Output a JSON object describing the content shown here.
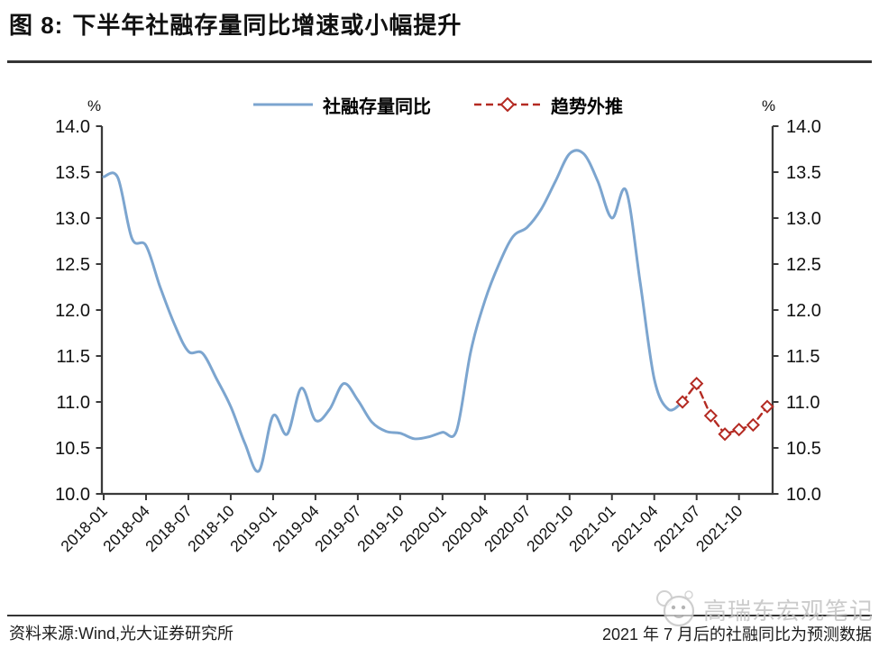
{
  "header": {
    "figure_label": "图 8:",
    "title": "下半年社融存量同比增速或小幅提升"
  },
  "legend": {
    "series1": "社融存量同比",
    "series2": "趋势外推"
  },
  "y_axis": {
    "unit_left": "%",
    "unit_right": "%"
  },
  "footer": {
    "source": "资料来源:Wind,光大证券研究所",
    "note": "2021 年 7 月后的社融同比为预测数据"
  },
  "watermark": {
    "text": "高瑞东宏观笔记",
    "icon": "panda-face-icon"
  },
  "colors": {
    "actual": "#7CA5CF",
    "forecast": "#B42A22",
    "axis": "#3a3a3a"
  },
  "chart_data": {
    "type": "line",
    "title": "下半年社融存量同比增速或小幅提升",
    "xlabel": "",
    "ylabel": "%",
    "ylim": [
      10.0,
      14.0
    ],
    "ytick_step": 0.5,
    "ytick_labels": [
      "14.0",
      "13.5",
      "13.0",
      "12.5",
      "12.0",
      "11.5",
      "11.0",
      "10.5",
      "10.0"
    ],
    "x_tick_labels": [
      "2018-01",
      "2018-04",
      "2018-07",
      "2018-10",
      "2019-01",
      "2019-04",
      "2019-07",
      "2019-10",
      "2020-01",
      "2020-04",
      "2020-07",
      "2020-10",
      "2021-01",
      "2021-04",
      "2021-07",
      "2021-10"
    ],
    "x_range_months": [
      "2018-01",
      "2021-12"
    ],
    "grid": false,
    "legend_position": "top",
    "series": [
      {
        "name": "社融存量同比",
        "style": "solid",
        "smooth": true,
        "marker": "none",
        "color": "#7CA5CF",
        "months": [
          "2018-01",
          "2018-02",
          "2018-03",
          "2018-04",
          "2018-05",
          "2018-06",
          "2018-07",
          "2018-08",
          "2018-09",
          "2018-10",
          "2018-11",
          "2018-12",
          "2019-01",
          "2019-02",
          "2019-03",
          "2019-04",
          "2019-05",
          "2019-06",
          "2019-07",
          "2019-08",
          "2019-09",
          "2019-10",
          "2019-11",
          "2019-12",
          "2020-01",
          "2020-02",
          "2020-03",
          "2020-04",
          "2020-05",
          "2020-06",
          "2020-07",
          "2020-08",
          "2020-09",
          "2020-10",
          "2020-11",
          "2020-12",
          "2021-01",
          "2021-02",
          "2021-03",
          "2021-04",
          "2021-05",
          "2021-06"
        ],
        "values": [
          13.45,
          13.44,
          12.78,
          12.7,
          12.25,
          11.85,
          11.55,
          11.53,
          11.25,
          10.95,
          10.55,
          10.25,
          10.85,
          10.65,
          11.15,
          10.8,
          10.92,
          11.2,
          11.02,
          10.78,
          10.68,
          10.66,
          10.6,
          10.62,
          10.67,
          10.69,
          11.55,
          12.1,
          12.5,
          12.8,
          12.9,
          13.1,
          13.4,
          13.7,
          13.7,
          13.4,
          13.0,
          13.3,
          12.3,
          11.25,
          10.92,
          11.0
        ]
      },
      {
        "name": "趋势外推",
        "style": "dashed",
        "smooth": false,
        "marker": "diamond",
        "color": "#B42A22",
        "months": [
          "2021-06",
          "2021-07",
          "2021-08",
          "2021-09",
          "2021-10",
          "2021-11",
          "2021-12"
        ],
        "values": [
          11.0,
          11.2,
          10.85,
          10.65,
          10.7,
          10.75,
          10.95
        ]
      }
    ]
  }
}
